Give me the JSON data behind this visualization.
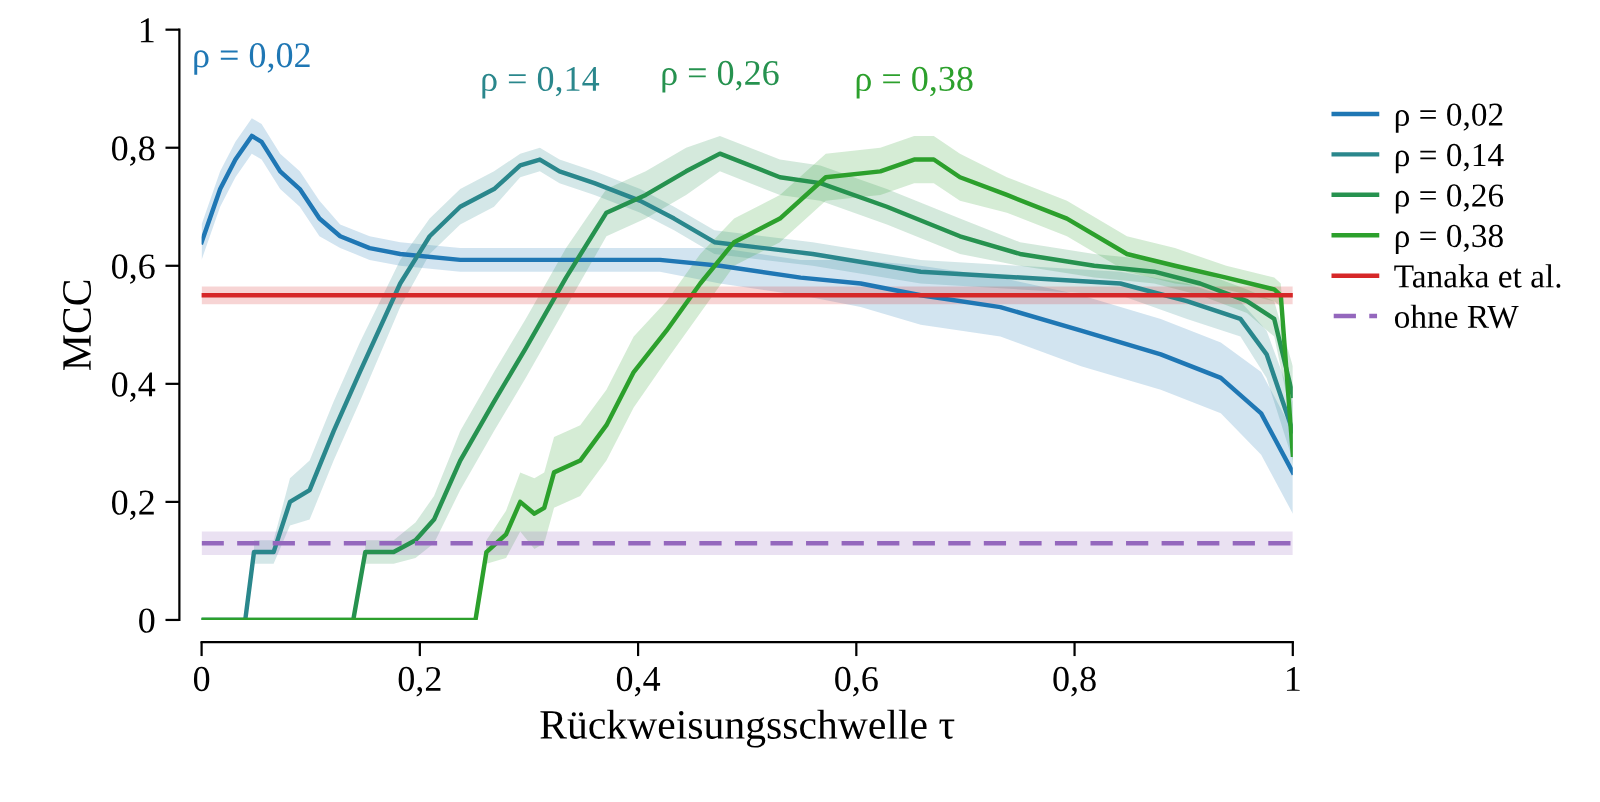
{
  "chart_data": {
    "type": "line",
    "xlabel": "Rückweisungsschwelle τ",
    "ylabel": "MCC",
    "xlim": [
      0,
      1
    ],
    "ylim": [
      0,
      1
    ],
    "xticks": [
      0,
      {
        "value": 0.2,
        "label": "0,2"
      },
      {
        "value": 0.4,
        "label": "0,4"
      },
      {
        "value": 0.6,
        "label": "0,6"
      },
      {
        "value": 0.8,
        "label": "0,8"
      },
      1
    ],
    "yticks": [
      0,
      {
        "value": 0.2,
        "label": "0,2"
      },
      {
        "value": 0.4,
        "label": "0,4"
      },
      {
        "value": 0.6,
        "label": "0,6"
      },
      {
        "value": 0.8,
        "label": "0,8"
      },
      1
    ],
    "grid": false,
    "legend": "right",
    "marker": "none",
    "series": [
      {
        "name": "ρ = 0,02",
        "color": "#1f77b4",
        "x": [
          0,
          0.017,
          0.031,
          0.046,
          0.055,
          0.072,
          0.09,
          0.108,
          0.127,
          0.154,
          0.182,
          0.237,
          0.292,
          0.365,
          0.42,
          0.475,
          0.549,
          0.604,
          0.659,
          0.732,
          0.806,
          0.879,
          0.934,
          0.971,
          1
        ],
        "values": [
          0.64,
          0.73,
          0.78,
          0.82,
          0.81,
          0.76,
          0.73,
          0.68,
          0.65,
          0.63,
          0.62,
          0.61,
          0.61,
          0.61,
          0.61,
          0.6,
          0.58,
          0.57,
          0.55,
          0.53,
          0.49,
          0.45,
          0.41,
          0.35,
          0.25
        ],
        "lower": [
          0.61,
          0.7,
          0.75,
          0.79,
          0.78,
          0.73,
          0.7,
          0.65,
          0.63,
          0.61,
          0.6,
          0.59,
          0.59,
          0.59,
          0.59,
          0.57,
          0.55,
          0.53,
          0.5,
          0.48,
          0.43,
          0.39,
          0.35,
          0.28,
          0.18
        ],
        "upper": [
          0.67,
          0.76,
          0.81,
          0.85,
          0.84,
          0.79,
          0.76,
          0.71,
          0.67,
          0.65,
          0.64,
          0.63,
          0.63,
          0.63,
          0.63,
          0.63,
          0.61,
          0.61,
          0.6,
          0.58,
          0.55,
          0.51,
          0.47,
          0.42,
          0.32
        ]
      },
      {
        "name": "ρ = 0,14",
        "color": "#2a878c",
        "x": [
          0,
          0.04,
          0.048,
          0.066,
          0.081,
          0.099,
          0.121,
          0.145,
          0.182,
          0.209,
          0.237,
          0.268,
          0.292,
          0.31,
          0.328,
          0.36,
          0.402,
          0.433,
          0.47,
          0.56,
          0.659,
          0.75,
          0.842,
          0.903,
          0.952,
          0.976,
          1
        ],
        "values": [
          0,
          0,
          0.115,
          0.115,
          0.2,
          0.22,
          0.32,
          0.42,
          0.57,
          0.65,
          0.7,
          0.73,
          0.77,
          0.78,
          0.76,
          0.74,
          0.71,
          0.68,
          0.64,
          0.62,
          0.59,
          0.58,
          0.57,
          0.54,
          0.51,
          0.45,
          0.32
        ],
        "lower": [
          null,
          null,
          0.095,
          0.095,
          0.16,
          0.17,
          0.27,
          0.37,
          0.53,
          0.62,
          0.67,
          0.7,
          0.75,
          0.76,
          0.74,
          0.72,
          0.69,
          0.66,
          0.62,
          0.6,
          0.57,
          0.56,
          0.55,
          0.51,
          0.48,
          0.41,
          0.27
        ],
        "upper": [
          null,
          null,
          0.135,
          0.135,
          0.24,
          0.27,
          0.37,
          0.47,
          0.61,
          0.68,
          0.73,
          0.76,
          0.79,
          0.8,
          0.78,
          0.76,
          0.73,
          0.7,
          0.66,
          0.64,
          0.61,
          0.6,
          0.59,
          0.57,
          0.54,
          0.49,
          0.37
        ]
      },
      {
        "name": "ρ = 0,26",
        "color": "#26924f",
        "x": [
          0,
          0.139,
          0.15,
          0.176,
          0.196,
          0.213,
          0.237,
          0.268,
          0.297,
          0.334,
          0.371,
          0.407,
          0.444,
          0.475,
          0.53,
          0.567,
          0.628,
          0.695,
          0.75,
          0.818,
          0.873,
          0.915,
          0.958,
          0.983,
          1
        ],
        "values": [
          0,
          0,
          0.115,
          0.115,
          0.135,
          0.17,
          0.27,
          0.37,
          0.46,
          0.58,
          0.69,
          0.72,
          0.76,
          0.79,
          0.75,
          0.74,
          0.7,
          0.65,
          0.62,
          0.6,
          0.59,
          0.57,
          0.54,
          0.51,
          0.38
        ],
        "lower": [
          null,
          null,
          0.095,
          0.095,
          0.105,
          0.13,
          0.22,
          0.32,
          0.41,
          0.53,
          0.65,
          0.68,
          0.72,
          0.76,
          0.72,
          0.71,
          0.67,
          0.62,
          0.6,
          0.58,
          0.57,
          0.55,
          0.52,
          0.48,
          0.33
        ],
        "upper": [
          null,
          null,
          0.135,
          0.135,
          0.165,
          0.21,
          0.32,
          0.42,
          0.51,
          0.63,
          0.73,
          0.76,
          0.8,
          0.82,
          0.78,
          0.77,
          0.73,
          0.68,
          0.64,
          0.62,
          0.61,
          0.59,
          0.56,
          0.54,
          0.43
        ]
      },
      {
        "name": "ρ = 0,38",
        "color": "#2ca02c",
        "x": [
          0,
          0.251,
          0.261,
          0.279,
          0.292,
          0.305,
          0.314,
          0.323,
          0.347,
          0.371,
          0.396,
          0.426,
          0.457,
          0.488,
          0.53,
          0.572,
          0.622,
          0.653,
          0.671,
          0.695,
          0.738,
          0.793,
          0.848,
          0.892,
          0.939,
          0.983,
          0.989,
          1
        ],
        "values": [
          0,
          0,
          0.115,
          0.145,
          0.2,
          0.18,
          0.19,
          0.25,
          0.27,
          0.33,
          0.42,
          0.49,
          0.57,
          0.64,
          0.68,
          0.75,
          0.76,
          0.78,
          0.78,
          0.75,
          0.72,
          0.68,
          0.62,
          0.6,
          0.58,
          0.56,
          0.55,
          0.28
        ],
        "lower": [
          null,
          null,
          0.095,
          0.105,
          0.15,
          0.12,
          0.13,
          0.19,
          0.21,
          0.27,
          0.36,
          0.44,
          0.52,
          0.6,
          0.64,
          0.71,
          0.72,
          0.74,
          0.74,
          0.71,
          0.69,
          0.65,
          0.59,
          0.57,
          0.56,
          0.54,
          0.53,
          0.26
        ],
        "upper": [
          null,
          null,
          0.135,
          0.185,
          0.25,
          0.24,
          0.25,
          0.31,
          0.33,
          0.39,
          0.48,
          0.54,
          0.62,
          0.68,
          0.72,
          0.79,
          0.8,
          0.82,
          0.82,
          0.79,
          0.75,
          0.71,
          0.65,
          0.63,
          0.6,
          0.58,
          0.57,
          0.3
        ]
      },
      {
        "name": "Tanaka et al.",
        "color": "#d62728",
        "x": [
          0,
          1
        ],
        "values": [
          0.55,
          0.55
        ],
        "lower": [
          0.535,
          0.535
        ],
        "upper": [
          0.565,
          0.565
        ]
      },
      {
        "name": "ohne RW",
        "color": "#9467bd",
        "line_style": "dashed",
        "x": [
          0,
          1
        ],
        "values": [
          0.13,
          0.13
        ],
        "lower": [
          0.11,
          0.11
        ],
        "upper": [
          0.15,
          0.15
        ]
      }
    ],
    "annotations": [
      "ρ = 0,02",
      "ρ = 0,14",
      "ρ = 0,26",
      "ρ = 0,38"
    ]
  }
}
